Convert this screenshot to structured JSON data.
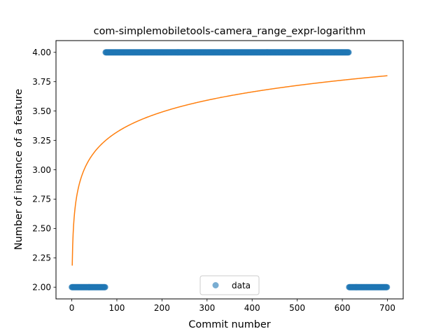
{
  "chart_data": {
    "type": "scatter",
    "title": "com-simplemobiletools-camera_range_expr-logarithm",
    "xlabel": "Commit number",
    "ylabel": "Number of instance of a feature",
    "xlim": [
      -35,
      735
    ],
    "ylim": [
      1.9,
      4.1
    ],
    "x_ticks": [
      0,
      100,
      200,
      300,
      400,
      500,
      600,
      700
    ],
    "y_ticks": [
      2.0,
      2.25,
      2.5,
      2.75,
      3.0,
      3.25,
      3.5,
      3.75,
      4.0
    ],
    "x_tick_labels": [
      "0",
      "100",
      "200",
      "300",
      "400",
      "500",
      "600",
      "700"
    ],
    "y_tick_labels": [
      "2.00",
      "2.25",
      "2.50",
      "2.75",
      "3.00",
      "3.25",
      "3.50",
      "3.75",
      "4.00"
    ],
    "grid": false,
    "legend": {
      "placement": "lower-center",
      "entries": [
        "data"
      ]
    },
    "series": [
      {
        "name": "data",
        "kind": "scatter",
        "color": "#1f77b4",
        "segments": [
          {
            "x_start": 0,
            "x_end": 75,
            "y": 2
          },
          {
            "x_start": 75,
            "x_end": 615,
            "y": 4
          },
          {
            "x_start": 615,
            "x_end": 700,
            "y": 2
          }
        ]
      },
      {
        "kind": "line",
        "color": "#ff7f0e",
        "fit": {
          "model": "logarithm",
          "a": 2.1835,
          "b": 0.2469,
          "x_start": 1,
          "x_end": 700
        }
      }
    ]
  }
}
